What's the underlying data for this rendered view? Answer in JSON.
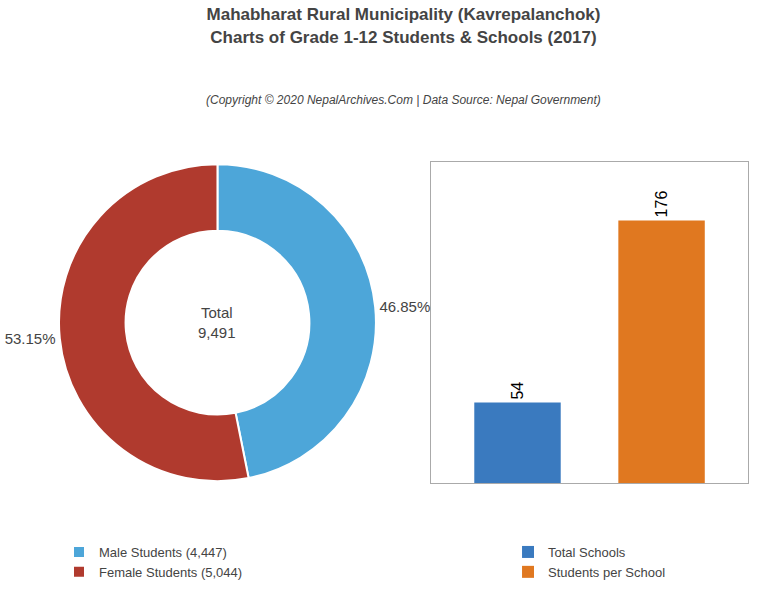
{
  "chart_data": [
    {
      "type": "pie",
      "title": "Mahabharat Rural Municipality (Kavrepalanchok)\nCharts of Grade 1-12 Students & Schools (2017)",
      "subtitle": "(Copyright © 2020 NepalArchives.Com | Data Source: Nepal Government)",
      "categories": [
        "Male Students (4,447)",
        "Female Students (5,044)"
      ],
      "values": [
        46.85,
        53.15
      ],
      "value_labels": [
        "46.85%",
        "53.15%"
      ],
      "colors": [
        "#4da6d9",
        "#b03a2e"
      ],
      "annotations": [
        {
          "text": "Total\n9,491"
        }
      ],
      "data_labels": true,
      "legend": "lower left"
    },
    {
      "type": "bar",
      "categories": [
        "Total Schools",
        "Students per School"
      ],
      "values": [
        54,
        176
      ],
      "colors": [
        "#3a7abf",
        "#e07820"
      ],
      "ylim": [
        0,
        215
      ],
      "data_labels": true,
      "tick_labels": false,
      "grid": false,
      "legend": "lower center"
    }
  ]
}
